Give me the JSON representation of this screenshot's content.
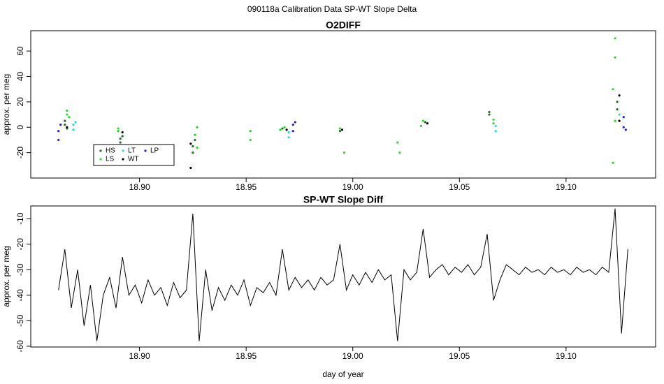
{
  "title": "090118a   Calibration Data SP-WT Slope Delta",
  "chart_data": [
    {
      "type": "scatter",
      "title": "O2DIFF",
      "y_label": "approx. per meg",
      "xlim": [
        18.849,
        19.142
      ],
      "ylim": [
        -40,
        76
      ],
      "xticks": [
        {
          "value": 18.9,
          "label": "18.90"
        },
        {
          "value": 18.95,
          "label": "18.95"
        },
        {
          "value": 19.0,
          "label": "19.00"
        },
        {
          "value": 19.05,
          "label": "19.05"
        },
        {
          "value": 19.1,
          "label": "19.10"
        }
      ],
      "yticks": [
        -20,
        0,
        20,
        40,
        60
      ],
      "legend": "bottom-left",
      "series": [
        {
          "name": "HS",
          "color": "#1f6f1f",
          "x": [
            18.865,
            18.865,
            18.866,
            18.891,
            18.891,
            18.892,
            18.925,
            18.925,
            18.926,
            18.967,
            18.994,
            19.034,
            19.064,
            19.064,
            19.124,
            19.124
          ],
          "values": [
            2,
            5,
            -1,
            -9,
            -12,
            -7,
            -15,
            -20,
            -10,
            -1,
            -3,
            4,
            10,
            12,
            14,
            20
          ]
        },
        {
          "name": "LS",
          "color": "#22dd22",
          "x": [
            18.866,
            18.866,
            18.867,
            18.89,
            18.89,
            18.926,
            18.927,
            18.927,
            18.952,
            18.952,
            18.966,
            18.968,
            18.994,
            18.996,
            19.021,
            19.022,
            19.032,
            19.033,
            19.066,
            19.066,
            19.122,
            19.123,
            19.123,
            19.122,
            19.123
          ],
          "values": [
            10,
            13,
            8,
            -3,
            -1,
            -6,
            0,
            -16,
            -3,
            -10,
            -2,
            0,
            -1,
            -20,
            -12,
            -20,
            1,
            5,
            6,
            3,
            30,
            55,
            70,
            -28,
            5
          ]
        },
        {
          "name": "LT",
          "color": "#22dddd",
          "x": [
            18.869,
            18.869,
            18.87,
            18.97,
            18.97,
            19.067,
            19.067,
            19.125
          ],
          "values": [
            2,
            -2,
            4,
            -4,
            -8,
            1,
            -3,
            10
          ]
        },
        {
          "name": "WT",
          "color": "#000000",
          "x": [
            18.866,
            18.892,
            18.924,
            18.924,
            18.969,
            18.995,
            19.035,
            19.125,
            19.125
          ],
          "values": [
            0,
            -4,
            -13,
            -32,
            -2,
            -2,
            3,
            25,
            5
          ]
        },
        {
          "name": "LP",
          "color": "#2222cc",
          "x": [
            18.862,
            18.862,
            18.863,
            18.972,
            18.972,
            18.973,
            19.127,
            19.127,
            19.128
          ],
          "values": [
            -3,
            -10,
            2,
            2,
            -3,
            4,
            8,
            0,
            -2
          ]
        }
      ]
    },
    {
      "type": "line",
      "title": "SP-WT Slope Diff",
      "x_label": "day of year",
      "y_label": "approx. per meg",
      "xlim": [
        18.849,
        19.142
      ],
      "ylim": [
        -60.3,
        -5
      ],
      "xticks": [
        {
          "value": 18.9,
          "label": "18.90"
        },
        {
          "value": 18.95,
          "label": "18.95"
        },
        {
          "value": 19.0,
          "label": "19.00"
        },
        {
          "value": 19.05,
          "label": "19.05"
        },
        {
          "value": 19.1,
          "label": "19.10"
        }
      ],
      "yticks": [
        -60,
        -50,
        -40,
        -30,
        -20,
        -10
      ],
      "color": "#000000",
      "x": [
        18.862,
        18.865,
        18.868,
        18.871,
        18.874,
        18.877,
        18.88,
        18.883,
        18.886,
        18.889,
        18.892,
        18.895,
        18.898,
        18.901,
        18.904,
        18.907,
        18.91,
        18.913,
        18.916,
        18.919,
        18.922,
        18.925,
        18.928,
        18.931,
        18.934,
        18.937,
        18.94,
        18.943,
        18.946,
        18.949,
        18.952,
        18.955,
        18.958,
        18.961,
        18.964,
        18.967,
        18.97,
        18.973,
        18.976,
        18.979,
        18.982,
        18.985,
        18.988,
        18.991,
        18.994,
        18.997,
        19.0,
        19.003,
        19.006,
        19.009,
        19.012,
        19.015,
        19.018,
        19.021,
        19.024,
        19.027,
        19.03,
        19.033,
        19.036,
        19.039,
        19.042,
        19.045,
        19.048,
        19.051,
        19.054,
        19.057,
        19.06,
        19.063,
        19.066,
        19.069,
        19.072,
        19.075,
        19.078,
        19.081,
        19.084,
        19.087,
        19.09,
        19.093,
        19.096,
        19.099,
        19.102,
        19.105,
        19.108,
        19.111,
        19.114,
        19.117,
        19.12,
        19.123,
        19.126,
        19.129
      ],
      "values": [
        -38,
        -22,
        -45,
        -30,
        -52,
        -36,
        -58,
        -40,
        -33,
        -45,
        -25,
        -40,
        -36,
        -43,
        -34,
        -40,
        -37,
        -44,
        -35,
        -41,
        -38,
        -8,
        -58,
        -30,
        -46,
        -37,
        -42,
        -36,
        -40,
        -34,
        -44,
        -37,
        -39,
        -35,
        -40,
        -22,
        -38,
        -33,
        -37,
        -34,
        -38,
        -33,
        -36,
        -34,
        -20,
        -38,
        -32,
        -36,
        -31,
        -35,
        -30,
        -34,
        -32,
        -58,
        -30,
        -34,
        -31,
        -14,
        -33,
        -30,
        -28,
        -32,
        -29,
        -31,
        -28,
        -32,
        -29,
        -16,
        -42,
        -34,
        -28,
        -30,
        -32,
        -29,
        -31,
        -30,
        -32,
        -29,
        -31,
        -30,
        -32,
        -29,
        -31,
        -30,
        -32,
        -29,
        -31,
        -6,
        -55,
        -22
      ]
    }
  ]
}
